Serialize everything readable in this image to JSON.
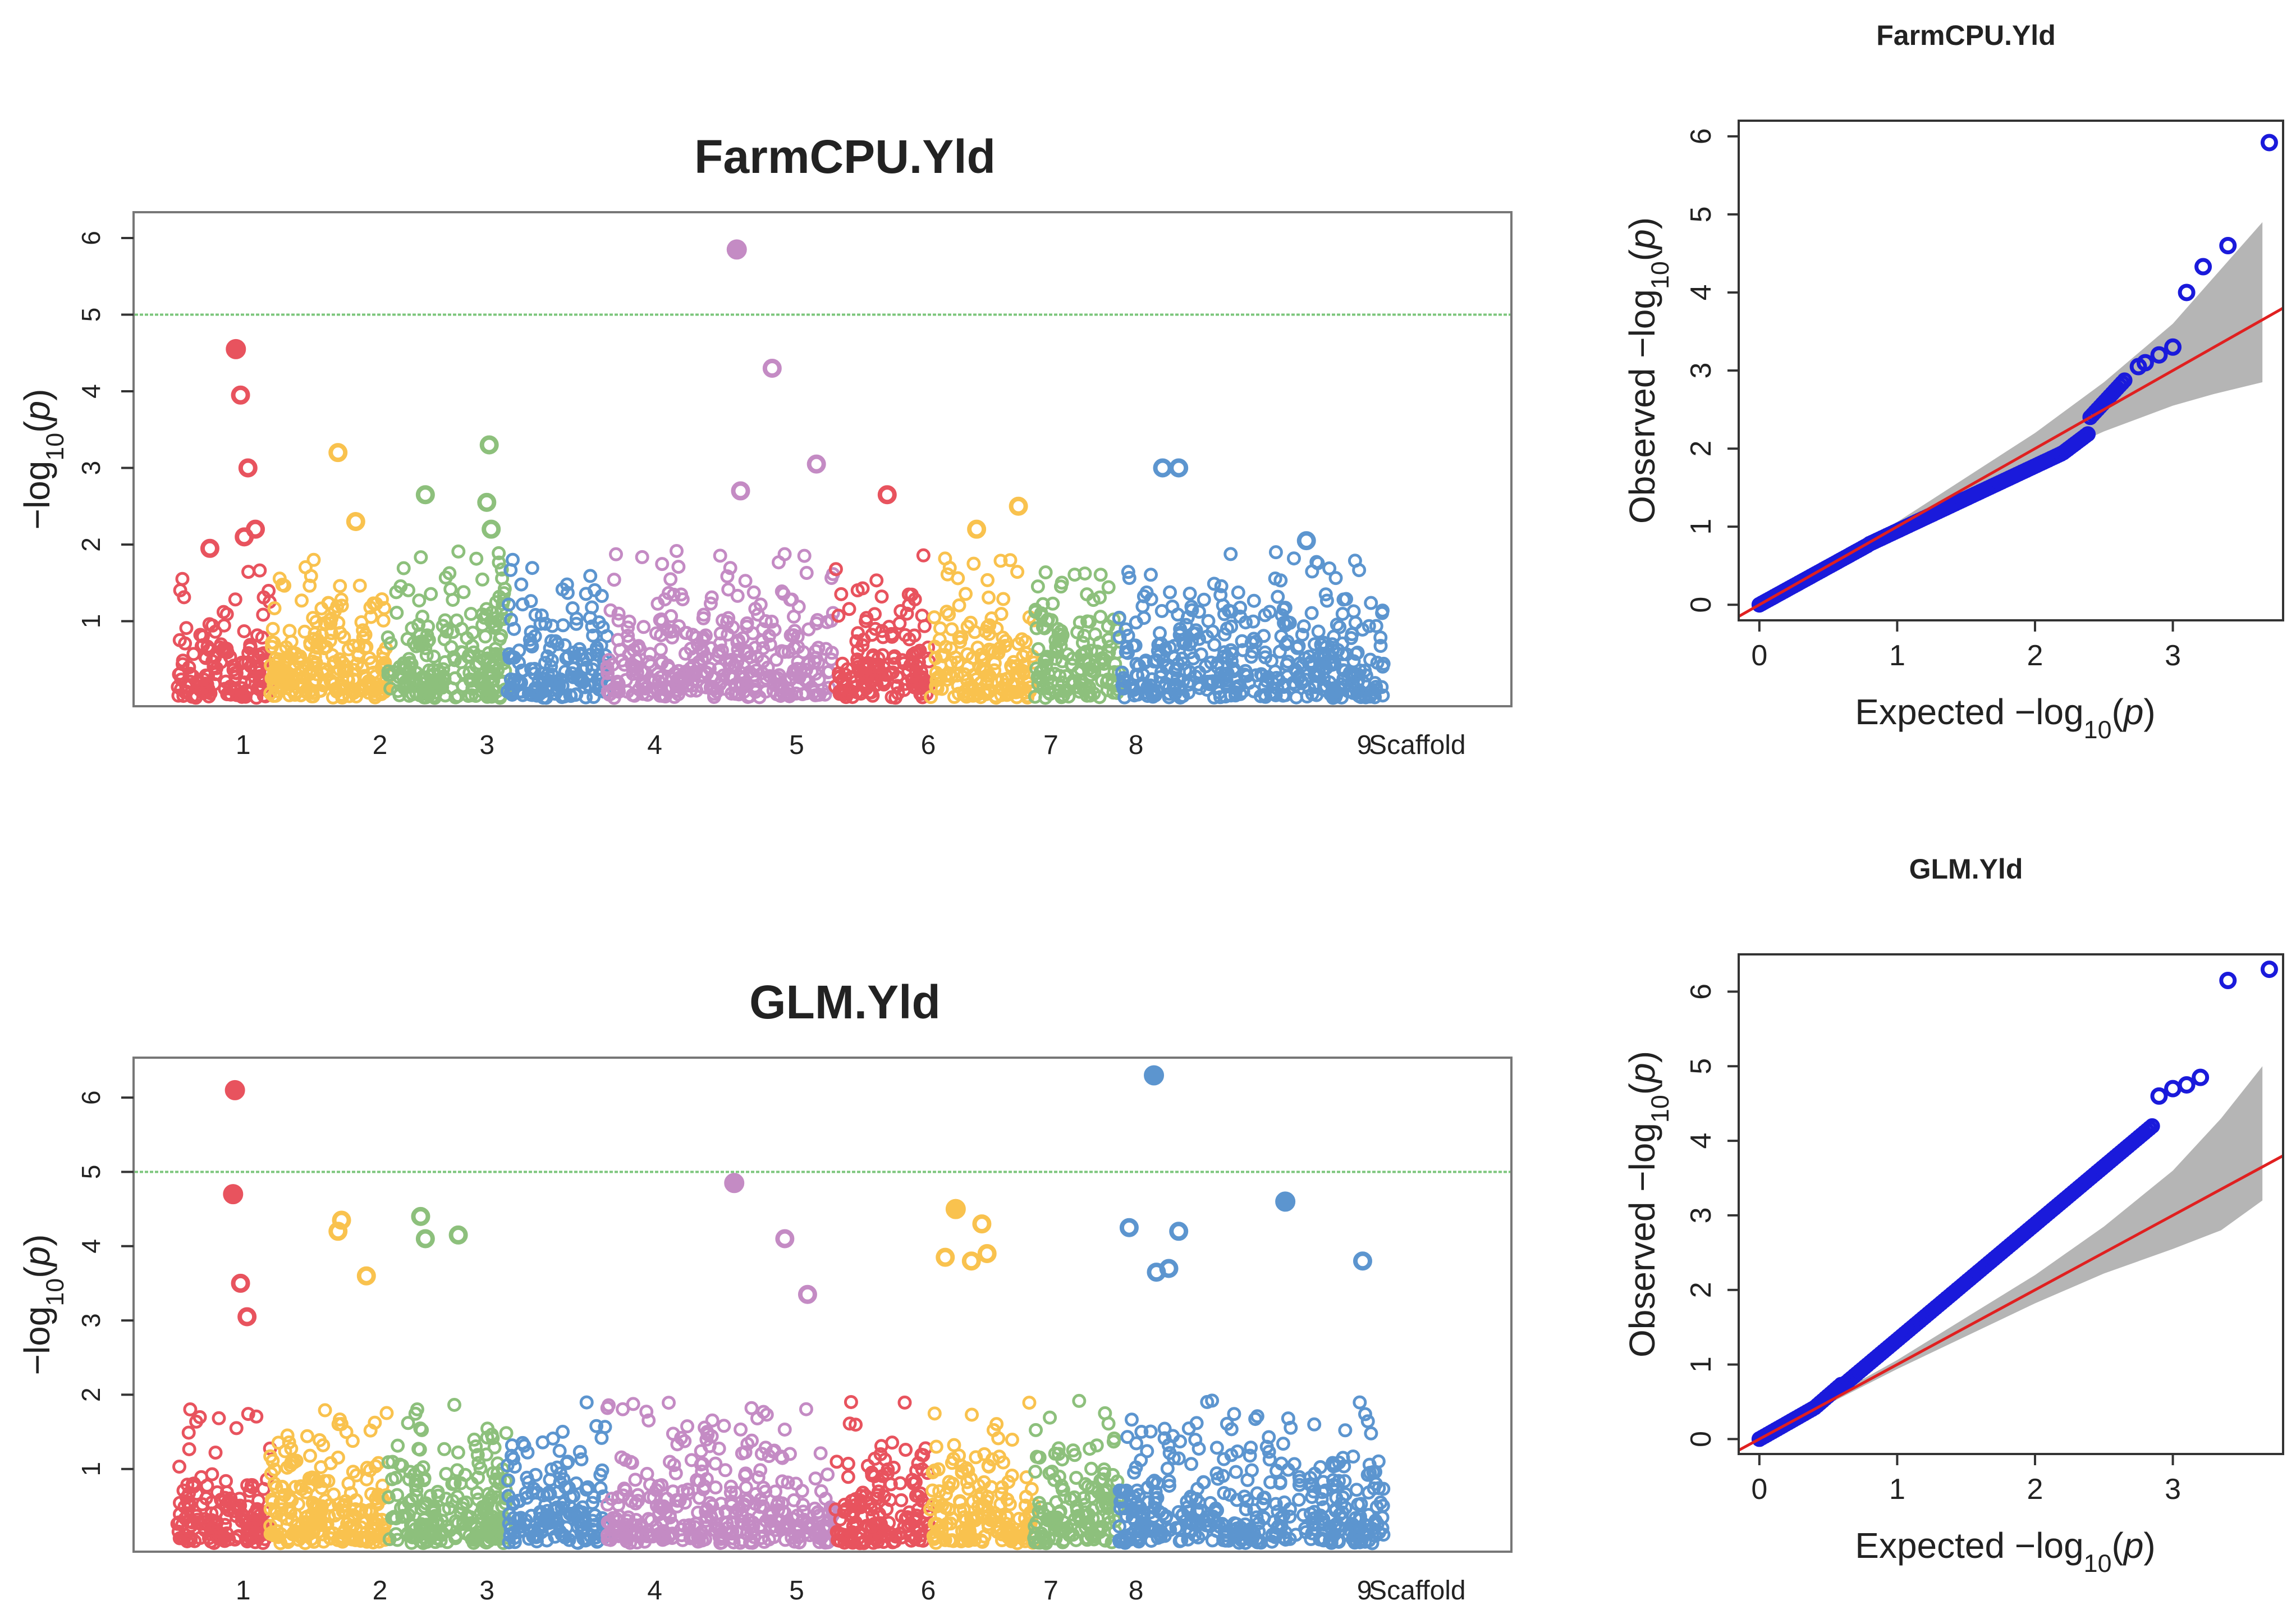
{
  "chart_data": [
    {
      "type": "scatter",
      "id": "manhattan-farmcpu",
      "title": "FarmCPU.Yld",
      "xlabel": "",
      "ylabel": "−log10(p)",
      "ylim": [
        0,
        6.3
      ],
      "yticks": [
        1,
        2,
        3,
        4,
        5,
        6
      ],
      "threshold": 5,
      "grid": false,
      "legend": "none",
      "chromosomes": [
        {
          "label": "1",
          "color": "#e8535e"
        },
        {
          "label": "",
          "color": "#f9c24e"
        },
        {
          "label": "2",
          "color": "#f9c24e"
        },
        {
          "label": "3",
          "color": "#8dc07c"
        },
        {
          "label": "",
          "color": "#8dc07c"
        },
        {
          "label": "4",
          "color": "#5c95cf"
        },
        {
          "label": "",
          "color": "#c48bc4"
        },
        {
          "label": "5",
          "color": "#c48bc4"
        },
        {
          "label": "6",
          "color": "#e8535e"
        },
        {
          "label": "7",
          "color": "#f9c24e"
        },
        {
          "label": "8",
          "color": "#8dc07c"
        },
        {
          "label": "9",
          "color": "#5c95cf"
        },
        {
          "label": "Scaffold",
          "color": "#5c95cf"
        }
      ],
      "highlights": [
        {
          "chrom": 0,
          "pos": 0.63,
          "y": 4.55
        },
        {
          "chrom": 0,
          "pos": 0.68,
          "y": 3.95
        },
        {
          "chrom": 0,
          "pos": 0.76,
          "y": 3.0
        },
        {
          "chrom": 0,
          "pos": 0.84,
          "y": 2.2
        },
        {
          "chrom": 0,
          "pos": 0.72,
          "y": 2.1
        },
        {
          "chrom": 0,
          "pos": 0.35,
          "y": 1.95
        },
        {
          "chrom": 2,
          "pos": 0.3,
          "y": 3.2
        },
        {
          "chrom": 2,
          "pos": 0.55,
          "y": 2.3
        },
        {
          "chrom": 3,
          "pos": 0.4,
          "y": 2.65
        },
        {
          "chrom": 4,
          "pos": 0.3,
          "y": 3.3
        },
        {
          "chrom": 4,
          "pos": 0.2,
          "y": 2.55
        },
        {
          "chrom": 4,
          "pos": 0.38,
          "y": 2.2
        },
        {
          "chrom": 7,
          "pos": 0.22,
          "y": 5.85
        },
        {
          "chrom": 7,
          "pos": 0.25,
          "y": 2.7
        },
        {
          "chrom": 7,
          "pos": 0.5,
          "y": 4.3
        },
        {
          "chrom": 7,
          "pos": 0.85,
          "y": 3.05
        },
        {
          "chrom": 8,
          "pos": 0.55,
          "y": 2.65
        },
        {
          "chrom": 9,
          "pos": 0.45,
          "y": 2.2
        },
        {
          "chrom": 9,
          "pos": 0.85,
          "y": 2.5
        },
        {
          "chrom": 11,
          "pos": 0.35,
          "y": 3.0
        },
        {
          "chrom": 11,
          "pos": 0.48,
          "y": 3.0
        },
        {
          "chrom": 12,
          "pos": 0.45,
          "y": 2.05
        }
      ]
    },
    {
      "type": "scatter",
      "id": "manhattan-glm",
      "title": "GLM.Yld",
      "xlabel": "",
      "ylabel": "−log10(p)",
      "ylim": [
        0,
        6.5
      ],
      "yticks": [
        1,
        2,
        3,
        4,
        5,
        6
      ],
      "threshold": 5,
      "grid": false,
      "legend": "none",
      "chromosomes": [
        {
          "label": "1",
          "color": "#e8535e"
        },
        {
          "label": "",
          "color": "#f9c24e"
        },
        {
          "label": "2",
          "color": "#f9c24e"
        },
        {
          "label": "3",
          "color": "#8dc07c"
        },
        {
          "label": "",
          "color": "#8dc07c"
        },
        {
          "label": "4",
          "color": "#5c95cf"
        },
        {
          "label": "",
          "color": "#c48bc4"
        },
        {
          "label": "5",
          "color": "#c48bc4"
        },
        {
          "label": "6",
          "color": "#e8535e"
        },
        {
          "label": "7",
          "color": "#f9c24e"
        },
        {
          "label": "8",
          "color": "#8dc07c"
        },
        {
          "label": "9",
          "color": "#5c95cf"
        },
        {
          "label": "Scaffold",
          "color": "#5c95cf"
        }
      ],
      "highlights": [
        {
          "chrom": 0,
          "pos": 0.62,
          "y": 6.1
        },
        {
          "chrom": 0,
          "pos": 0.6,
          "y": 4.7
        },
        {
          "chrom": 0,
          "pos": 0.68,
          "y": 3.5
        },
        {
          "chrom": 0,
          "pos": 0.75,
          "y": 3.05
        },
        {
          "chrom": 2,
          "pos": 0.35,
          "y": 4.35
        },
        {
          "chrom": 2,
          "pos": 0.3,
          "y": 4.2
        },
        {
          "chrom": 2,
          "pos": 0.7,
          "y": 3.6
        },
        {
          "chrom": 3,
          "pos": 0.35,
          "y": 4.4
        },
        {
          "chrom": 3,
          "pos": 0.4,
          "y": 4.1
        },
        {
          "chrom": 3,
          "pos": 0.75,
          "y": 4.15
        },
        {
          "chrom": 7,
          "pos": 0.2,
          "y": 4.85
        },
        {
          "chrom": 7,
          "pos": 0.6,
          "y": 4.1
        },
        {
          "chrom": 7,
          "pos": 0.78,
          "y": 3.35
        },
        {
          "chrom": 9,
          "pos": 0.25,
          "y": 4.5
        },
        {
          "chrom": 9,
          "pos": 0.5,
          "y": 4.3
        },
        {
          "chrom": 9,
          "pos": 0.15,
          "y": 3.85
        },
        {
          "chrom": 9,
          "pos": 0.4,
          "y": 3.8
        },
        {
          "chrom": 9,
          "pos": 0.55,
          "y": 3.9
        },
        {
          "chrom": 11,
          "pos": 0.28,
          "y": 6.3
        },
        {
          "chrom": 11,
          "pos": 0.08,
          "y": 4.25
        },
        {
          "chrom": 11,
          "pos": 0.48,
          "y": 4.2
        },
        {
          "chrom": 11,
          "pos": 0.3,
          "y": 3.65
        },
        {
          "chrom": 11,
          "pos": 0.4,
          "y": 3.7
        },
        {
          "chrom": 12,
          "pos": 0.3,
          "y": 4.6
        },
        {
          "chrom": 12,
          "pos": 0.85,
          "y": 3.8
        }
      ]
    },
    {
      "type": "scatter",
      "id": "qq-farmcpu",
      "title": "FarmCPU.Yld",
      "xlabel": "Expected −log10(p)",
      "ylabel": "Observed −log10(p)",
      "xlim": [
        -0.15,
        3.8
      ],
      "ylim": [
        -0.2,
        6.2
      ],
      "xticks": [
        0,
        1,
        2,
        3
      ],
      "yticks": [
        0,
        1,
        2,
        3,
        4,
        5,
        6
      ],
      "grid": false,
      "legend": "none",
      "colors": {
        "points": "#1a1adb",
        "line": "#e02020",
        "band": "#b5b5b5"
      },
      "band_upper": [
        [
          0,
          0.03
        ],
        [
          1,
          1.06
        ],
        [
          2,
          2.2
        ],
        [
          2.5,
          2.85
        ],
        [
          3.0,
          3.6
        ],
        [
          3.3,
          4.2
        ],
        [
          3.65,
          4.9
        ]
      ],
      "band_lower": [
        [
          0,
          0
        ],
        [
          1,
          0.94
        ],
        [
          2,
          1.82
        ],
        [
          2.5,
          2.22
        ],
        [
          3.0,
          2.55
        ],
        [
          3.3,
          2.7
        ],
        [
          3.65,
          2.85
        ]
      ],
      "points": [
        [
          3.1,
          4.0
        ],
        [
          3.22,
          4.33
        ],
        [
          3.4,
          4.6
        ],
        [
          3.7,
          5.92
        ],
        [
          2.9,
          3.2
        ],
        [
          3.0,
          3.3
        ],
        [
          2.8,
          3.1
        ],
        [
          2.75,
          3.05
        ]
      ]
    },
    {
      "type": "scatter",
      "id": "qq-glm",
      "title": "GLM.Yld",
      "xlabel": "Expected −log10(p)",
      "ylabel": "Observed −log10(p)",
      "xlim": [
        -0.15,
        3.8
      ],
      "ylim": [
        -0.2,
        6.5
      ],
      "xticks": [
        0,
        1,
        2,
        3
      ],
      "yticks": [
        0,
        1,
        2,
        3,
        4,
        5,
        6
      ],
      "grid": false,
      "legend": "none",
      "colors": {
        "points": "#1a1adb",
        "line": "#e02020",
        "band": "#b5b5b5"
      },
      "band_upper": [
        [
          0,
          0.03
        ],
        [
          1,
          1.06
        ],
        [
          2,
          2.2
        ],
        [
          2.5,
          2.85
        ],
        [
          3.0,
          3.6
        ],
        [
          3.35,
          4.3
        ],
        [
          3.65,
          5.0
        ]
      ],
      "band_lower": [
        [
          0,
          0
        ],
        [
          1,
          0.94
        ],
        [
          2,
          1.82
        ],
        [
          2.5,
          2.22
        ],
        [
          3.0,
          2.55
        ],
        [
          3.35,
          2.8
        ],
        [
          3.65,
          3.2
        ]
      ],
      "points": [
        [
          2.9,
          4.6
        ],
        [
          3.0,
          4.7
        ],
        [
          3.1,
          4.75
        ],
        [
          3.2,
          4.85
        ],
        [
          3.4,
          6.15
        ],
        [
          3.7,
          6.3
        ]
      ]
    }
  ]
}
